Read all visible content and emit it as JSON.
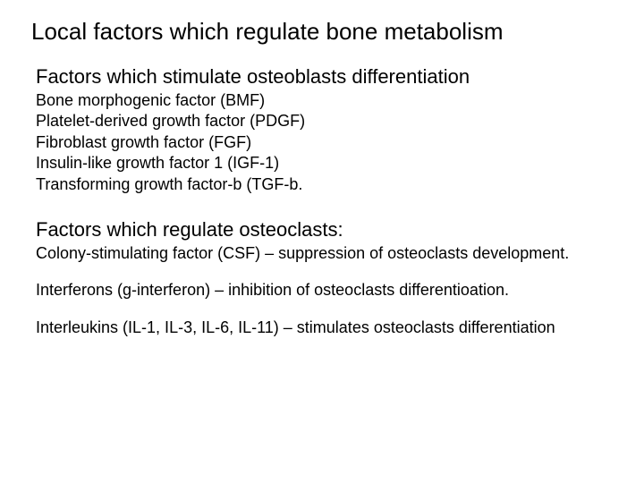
{
  "title": "Local factors which regulate bone metabolism",
  "section1": {
    "heading": "Factors which stimulate osteoblasts differentiation",
    "items": [
      "Bone morphogenic factor (BMF)",
      "Platelet-derived growth factor (PDGF)",
      "Fibroblast growth factor (FGF)",
      "Insulin-like growth factor 1 (IGF-1)",
      "Transforming growth factor-b (TGF-b."
    ]
  },
  "section2": {
    "heading": "Factors which regulate osteoclasts:",
    "items": [
      "Colony-stimulating factor (CSF) – suppression of osteoclasts development.",
      "Interferons (g-interferon) – inhibition of osteoclasts differentioation.",
      "Interleukins (IL-1, IL-3, IL-6, IL-11) – stimulates osteoclasts differentiation"
    ]
  },
  "typography": {
    "title_fontsize": 26,
    "subtitle_fontsize": 22,
    "item_fontsize": 18,
    "font_family": "Verdana",
    "text_color": "#000000",
    "background_color": "#ffffff"
  }
}
